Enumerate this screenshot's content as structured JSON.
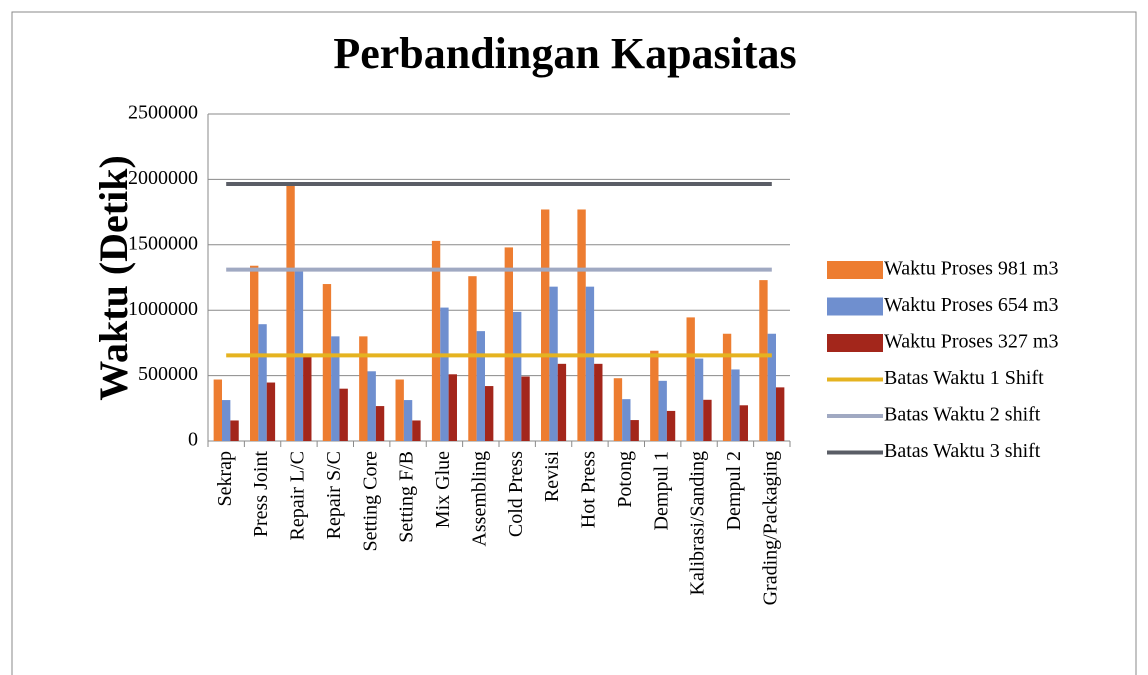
{
  "chart_data": {
    "type": "bar",
    "title": "Perbandingan Kapasitas",
    "y_label": "Waktu (Detik)",
    "categories": [
      "Sekrap",
      "Press Joint",
      "Repair L/C",
      "Repair S/C",
      "Setting Core",
      "Setting F/B",
      "Mix Glue",
      "Assembling",
      "Cold Press",
      "Revisi",
      "Hot Press",
      "Potong",
      "Dempul 1",
      "Kalibrasi/Sanding",
      "Dempul 2",
      "Grading/Packaging"
    ],
    "series": [
      {
        "name": "Waktu Proses 981 m3",
        "type": "bar",
        "color": "#ed7d31",
        "values": [
          470000,
          1340000,
          1960000,
          1200000,
          800000,
          470000,
          1530000,
          1260000,
          1480000,
          1770000,
          1770000,
          480000,
          690000,
          945000,
          820000,
          1230000
        ]
      },
      {
        "name": "Waktu Proses 654 m3",
        "type": "bar",
        "color": "#6f8fcf",
        "values": [
          313000,
          893000,
          1307000,
          800000,
          533000,
          313000,
          1020000,
          840000,
          987000,
          1180000,
          1180000,
          320000,
          460000,
          630000,
          547000,
          820000
        ]
      },
      {
        "name": "Waktu Proses 327 m3",
        "type": "bar",
        "color": "#a3261b",
        "values": [
          157000,
          447000,
          653000,
          400000,
          267000,
          157000,
          510000,
          420000,
          493000,
          590000,
          590000,
          160000,
          230000,
          315000,
          273000,
          410000
        ]
      },
      {
        "name": "Batas Waktu 1 Shift",
        "type": "line",
        "color": "#e5b320",
        "values": [
          655000,
          655000,
          655000,
          655000,
          655000,
          655000,
          655000,
          655000,
          655000,
          655000,
          655000,
          655000,
          655000,
          655000,
          655000,
          655000
        ]
      },
      {
        "name": "Batas Waktu 2 shift",
        "type": "line",
        "color": "#a0a9c2",
        "values": [
          1310000,
          1310000,
          1310000,
          1310000,
          1310000,
          1310000,
          1310000,
          1310000,
          1310000,
          1310000,
          1310000,
          1310000,
          1310000,
          1310000,
          1310000,
          1310000
        ]
      },
      {
        "name": "Batas Waktu 3 shift",
        "type": "line",
        "color": "#5a5d66",
        "values": [
          1965000,
          1965000,
          1965000,
          1965000,
          1965000,
          1965000,
          1965000,
          1965000,
          1965000,
          1965000,
          1965000,
          1965000,
          1965000,
          1965000,
          1965000,
          1965000
        ]
      }
    ],
    "ylim": [
      0,
      2500000
    ],
    "yticks": [
      0,
      500000,
      1000000,
      1500000,
      2000000,
      2500000
    ],
    "grid": true,
    "legend": "right"
  }
}
